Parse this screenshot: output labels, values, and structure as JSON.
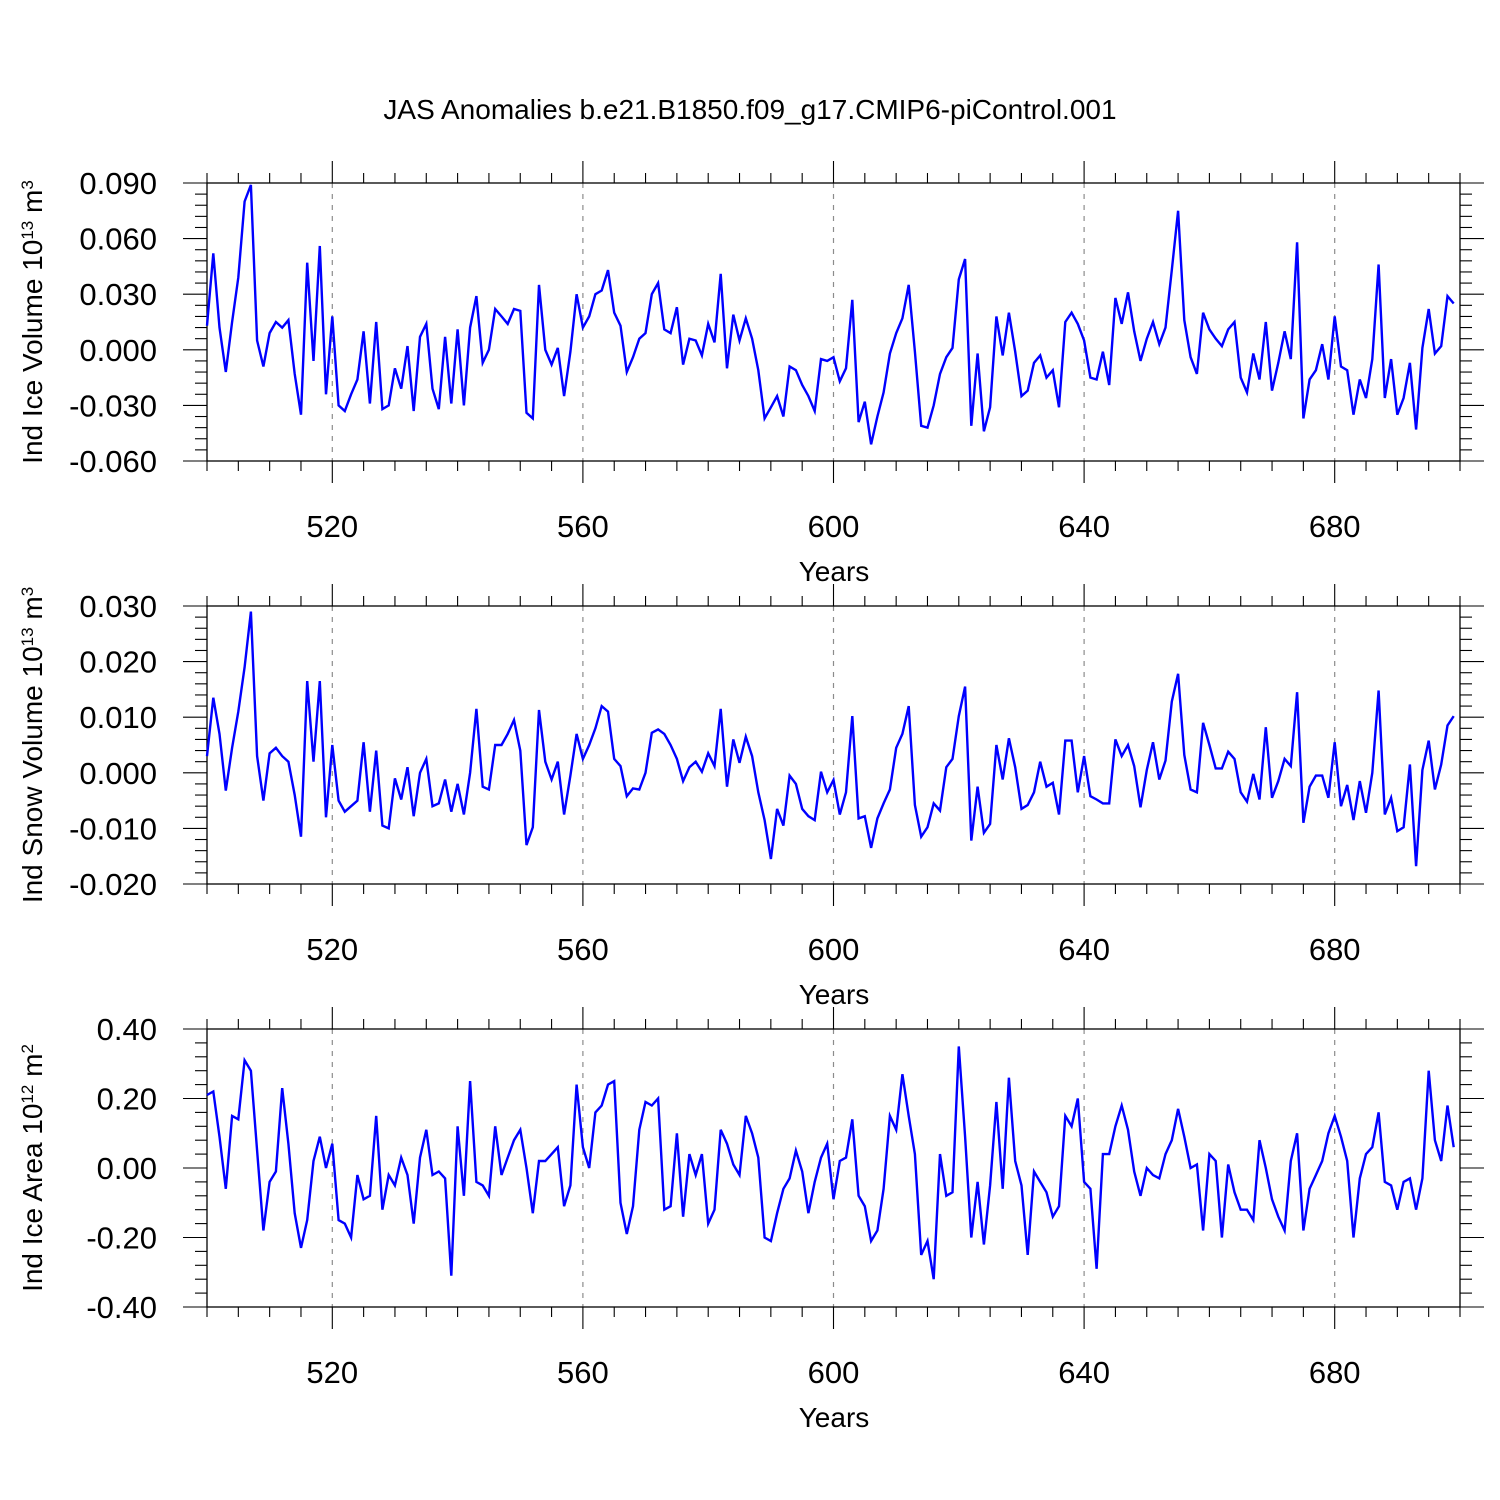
{
  "title": "JAS Anomalies b.e21.B1850.f09_g17.CMIP6-piControl.001",
  "colors": {
    "series": "#0000ff",
    "grid": "#8c8c8c"
  },
  "chart_data": [
    {
      "type": "line",
      "ylabel_main": "Ind Ice Volume 10",
      "ylabel_exp": "13",
      "ylabel_unit": " m",
      "ylabel_unit_exp": "3",
      "xlabel": "Years",
      "xlim": [
        500,
        700
      ],
      "ylim": [
        -0.06,
        0.09
      ],
      "xticks": [
        520,
        560,
        600,
        640,
        680
      ],
      "yticks": [
        -0.06,
        -0.03,
        0.0,
        0.03,
        0.06,
        0.09
      ],
      "ytick_labels": [
        "-0.060",
        "-0.030",
        "0.000",
        "0.030",
        "0.060",
        "0.090"
      ],
      "grid": "vertical dashed at major x ticks",
      "x_start": 500,
      "values": [
        0.013,
        0.052,
        0.012,
        -0.012,
        0.015,
        0.039,
        0.08,
        0.089,
        0.005,
        -0.009,
        0.009,
        0.015,
        0.012,
        0.016,
        -0.013,
        -0.035,
        0.047,
        -0.006,
        0.056,
        -0.024,
        0.018,
        -0.03,
        -0.033,
        -0.024,
        -0.016,
        0.01,
        -0.029,
        0.015,
        -0.032,
        -0.03,
        -0.01,
        -0.021,
        0.002,
        -0.033,
        0.007,
        0.014,
        -0.021,
        -0.032,
        0.007,
        -0.029,
        0.011,
        -0.03,
        0.012,
        0.029,
        -0.007,
        0.0,
        0.022,
        0.018,
        0.014,
        0.022,
        0.021,
        -0.034,
        -0.037,
        0.035,
        0.0,
        -0.008,
        0.001,
        -0.025,
        -0.001,
        0.03,
        0.012,
        0.018,
        0.03,
        0.032,
        0.043,
        0.02,
        0.013,
        -0.012,
        -0.004,
        0.006,
        0.009,
        0.03,
        0.036,
        0.011,
        0.009,
        0.023,
        -0.008,
        0.006,
        0.005,
        -0.003,
        0.014,
        0.004,
        0.041,
        -0.01,
        0.019,
        0.005,
        0.017,
        0.006,
        -0.011,
        -0.037,
        -0.031,
        -0.025,
        -0.036,
        -0.009,
        -0.011,
        -0.019,
        -0.025,
        -0.033,
        -0.005,
        -0.006,
        -0.004,
        -0.017,
        -0.01,
        0.027,
        -0.039,
        -0.028,
        -0.051,
        -0.036,
        -0.023,
        -0.002,
        0.009,
        0.017,
        0.035,
        -0.001,
        -0.041,
        -0.042,
        -0.03,
        -0.013,
        -0.004,
        0.001,
        0.038,
        0.049,
        -0.041,
        -0.002,
        -0.044,
        -0.031,
        0.018,
        -0.003,
        0.02,
        -0.001,
        -0.025,
        -0.022,
        -0.007,
        -0.003,
        -0.015,
        -0.011,
        -0.031,
        0.015,
        0.02,
        0.014,
        0.005,
        -0.015,
        -0.016,
        -0.001,
        -0.019,
        0.028,
        0.014,
        0.031,
        0.01,
        -0.006,
        0.006,
        0.015,
        0.003,
        0.012,
        0.043,
        0.075,
        0.016,
        -0.004,
        -0.013,
        0.02,
        0.011,
        0.006,
        0.002,
        0.011,
        0.015,
        -0.015,
        -0.023,
        -0.002,
        -0.016,
        0.015,
        -0.022,
        -0.007,
        0.01,
        -0.005,
        0.058,
        -0.037,
        -0.016,
        -0.011,
        0.003,
        -0.016,
        0.018,
        -0.009,
        -0.011,
        -0.035,
        -0.016,
        -0.026,
        -0.005,
        0.046,
        -0.026,
        -0.005,
        -0.035,
        -0.026,
        -0.007,
        -0.043,
        0.001,
        0.022,
        -0.002,
        0.002,
        0.029,
        0.025
      ]
    },
    {
      "type": "line",
      "ylabel_main": "Ind Snow Volume 10",
      "ylabel_exp": "13",
      "ylabel_unit": " m",
      "ylabel_unit_exp": "3",
      "xlabel": "Years",
      "xlim": [
        500,
        700
      ],
      "ylim": [
        -0.02,
        0.03
      ],
      "xticks": [
        520,
        560,
        600,
        640,
        680
      ],
      "yticks": [
        -0.02,
        -0.01,
        0.0,
        0.01,
        0.02,
        0.03
      ],
      "ytick_labels": [
        "-0.020",
        "-0.010",
        "0.000",
        "0.010",
        "0.020",
        "0.030"
      ],
      "grid": "vertical dashed at major x ticks",
      "x_start": 500,
      "values": [
        0.003,
        0.0135,
        0.007,
        -0.0032,
        0.0045,
        0.011,
        0.019,
        0.029,
        0.003,
        -0.005,
        0.0035,
        0.0045,
        0.003,
        0.002,
        -0.004,
        -0.0115,
        0.0165,
        0.002,
        0.0165,
        -0.008,
        0.005,
        -0.005,
        -0.007,
        -0.006,
        -0.005,
        0.0055,
        -0.007,
        0.004,
        -0.0095,
        -0.01,
        -0.001,
        -0.0048,
        0.001,
        -0.0078,
        0.0,
        0.0025,
        -0.006,
        -0.0055,
        -0.0012,
        -0.007,
        -0.002,
        -0.0075,
        0.0,
        0.0115,
        -0.0025,
        -0.003,
        0.005,
        0.005,
        0.007,
        0.0095,
        0.004,
        -0.013,
        -0.0098,
        0.0113,
        0.002,
        -0.0012,
        0.002,
        -0.0075,
        -0.0005,
        0.007,
        0.0025,
        0.005,
        0.008,
        0.012,
        0.011,
        0.0025,
        0.0012,
        -0.0042,
        -0.0028,
        -0.003,
        0.0,
        0.0072,
        0.0078,
        0.007,
        0.005,
        0.0025,
        -0.0015,
        0.001,
        0.002,
        0.0002,
        0.0035,
        0.0012,
        0.0115,
        -0.0025,
        0.006,
        0.0018,
        0.0065,
        0.003,
        -0.0035,
        -0.0085,
        -0.0155,
        -0.0065,
        -0.0095,
        -0.0005,
        -0.002,
        -0.0065,
        -0.0078,
        -0.0085,
        0.0002,
        -0.0035,
        -0.0013,
        -0.0075,
        -0.0035,
        0.0102,
        -0.0082,
        -0.0078,
        -0.0135,
        -0.0082,
        -0.0055,
        -0.003,
        0.0045,
        0.007,
        0.012,
        -0.0058,
        -0.0115,
        -0.0098,
        -0.0055,
        -0.0068,
        0.001,
        0.0025,
        0.0102,
        0.0155,
        -0.0122,
        -0.0025,
        -0.0108,
        -0.0092,
        0.005,
        -0.0012,
        0.0062,
        0.001,
        -0.0065,
        -0.0058,
        -0.0035,
        0.002,
        -0.0025,
        -0.0018,
        -0.0075,
        0.0058,
        0.0058,
        -0.0035,
        0.003,
        -0.0042,
        -0.0048,
        -0.0055,
        -0.0055,
        0.006,
        0.003,
        0.005,
        0.0012,
        -0.0062,
        0.0005,
        0.0055,
        -0.0012,
        0.0022,
        0.0128,
        0.0178,
        0.0032,
        -0.003,
        -0.0035,
        0.009,
        0.005,
        0.0008,
        0.0008,
        0.0038,
        0.0025,
        -0.0035,
        -0.0052,
        -0.0002,
        -0.0048,
        0.0082,
        -0.0045,
        -0.0015,
        0.0025,
        0.0012,
        0.0145,
        -0.009,
        -0.0025,
        -0.0005,
        -0.0005,
        -0.0045,
        0.0055,
        -0.006,
        -0.0022,
        -0.0085,
        -0.0015,
        -0.0072,
        0.0,
        0.0148,
        -0.0075,
        -0.0045,
        -0.0105,
        -0.0098,
        0.0015,
        -0.0168,
        0.0005,
        0.0058,
        -0.003,
        0.0015,
        0.0085,
        0.0102
      ]
    },
    {
      "type": "line",
      "ylabel_main": "Ind Ice Area 10",
      "ylabel_exp": "12",
      "ylabel_unit": " m",
      "ylabel_unit_exp": "2",
      "xlabel": "Years",
      "xlim": [
        500,
        700
      ],
      "ylim": [
        -0.4,
        0.4
      ],
      "xticks": [
        520,
        560,
        600,
        640,
        680
      ],
      "yticks": [
        -0.4,
        -0.2,
        0.0,
        0.2,
        0.4
      ],
      "ytick_labels": [
        "-0.40",
        "-0.20",
        "0.00",
        "0.20",
        "0.40"
      ],
      "grid": "vertical dashed at major x ticks",
      "x_start": 500,
      "values": [
        0.21,
        0.22,
        0.09,
        -0.06,
        0.15,
        0.14,
        0.31,
        0.28,
        0.05,
        -0.18,
        -0.04,
        -0.01,
        0.23,
        0.07,
        -0.13,
        -0.23,
        -0.15,
        0.02,
        0.09,
        0.0,
        0.07,
        -0.15,
        -0.16,
        -0.2,
        -0.02,
        -0.09,
        -0.08,
        0.15,
        -0.12,
        -0.02,
        -0.05,
        0.03,
        -0.02,
        -0.16,
        0.03,
        0.11,
        -0.02,
        -0.01,
        -0.03,
        -0.31,
        0.12,
        -0.08,
        0.25,
        -0.04,
        -0.05,
        -0.08,
        0.12,
        -0.02,
        0.03,
        0.08,
        0.11,
        0.0,
        -0.13,
        0.02,
        0.02,
        0.04,
        0.06,
        -0.11,
        -0.05,
        0.24,
        0.06,
        0.0,
        0.16,
        0.18,
        0.24,
        0.25,
        -0.1,
        -0.19,
        -0.11,
        0.11,
        0.19,
        0.18,
        0.2,
        -0.12,
        -0.11,
        0.1,
        -0.14,
        0.04,
        -0.02,
        0.04,
        -0.16,
        -0.12,
        0.11,
        0.07,
        0.01,
        -0.02,
        0.15,
        0.1,
        0.03,
        -0.2,
        -0.21,
        -0.13,
        -0.06,
        -0.03,
        0.05,
        -0.01,
        -0.13,
        -0.04,
        0.03,
        0.07,
        -0.09,
        0.02,
        0.03,
        0.14,
        -0.08,
        -0.11,
        -0.21,
        -0.18,
        -0.06,
        0.15,
        0.11,
        0.27,
        0.15,
        0.04,
        -0.25,
        -0.21,
        -0.32,
        0.04,
        -0.08,
        -0.07,
        0.35,
        0.09,
        -0.2,
        -0.04,
        -0.22,
        -0.05,
        0.19,
        -0.06,
        0.26,
        0.02,
        -0.05,
        -0.25,
        -0.01,
        -0.04,
        -0.07,
        -0.14,
        -0.11,
        0.15,
        0.12,
        0.2,
        -0.04,
        -0.06,
        -0.29,
        0.04,
        0.04,
        0.12,
        0.18,
        0.11,
        -0.01,
        -0.08,
        0.0,
        -0.02,
        -0.03,
        0.04,
        0.08,
        0.17,
        0.09,
        0.0,
        0.01,
        -0.18,
        0.04,
        0.02,
        -0.2,
        0.01,
        -0.07,
        -0.12,
        -0.12,
        -0.15,
        0.08,
        0.0,
        -0.09,
        -0.14,
        -0.18,
        0.02,
        0.1,
        -0.18,
        -0.06,
        -0.02,
        0.02,
        0.1,
        0.15,
        0.09,
        0.02,
        -0.2,
        -0.03,
        0.04,
        0.06,
        0.16,
        -0.04,
        -0.05,
        -0.12,
        -0.04,
        -0.03,
        -0.12,
        -0.03,
        0.28,
        0.08,
        0.02,
        0.18,
        0.06
      ]
    }
  ]
}
